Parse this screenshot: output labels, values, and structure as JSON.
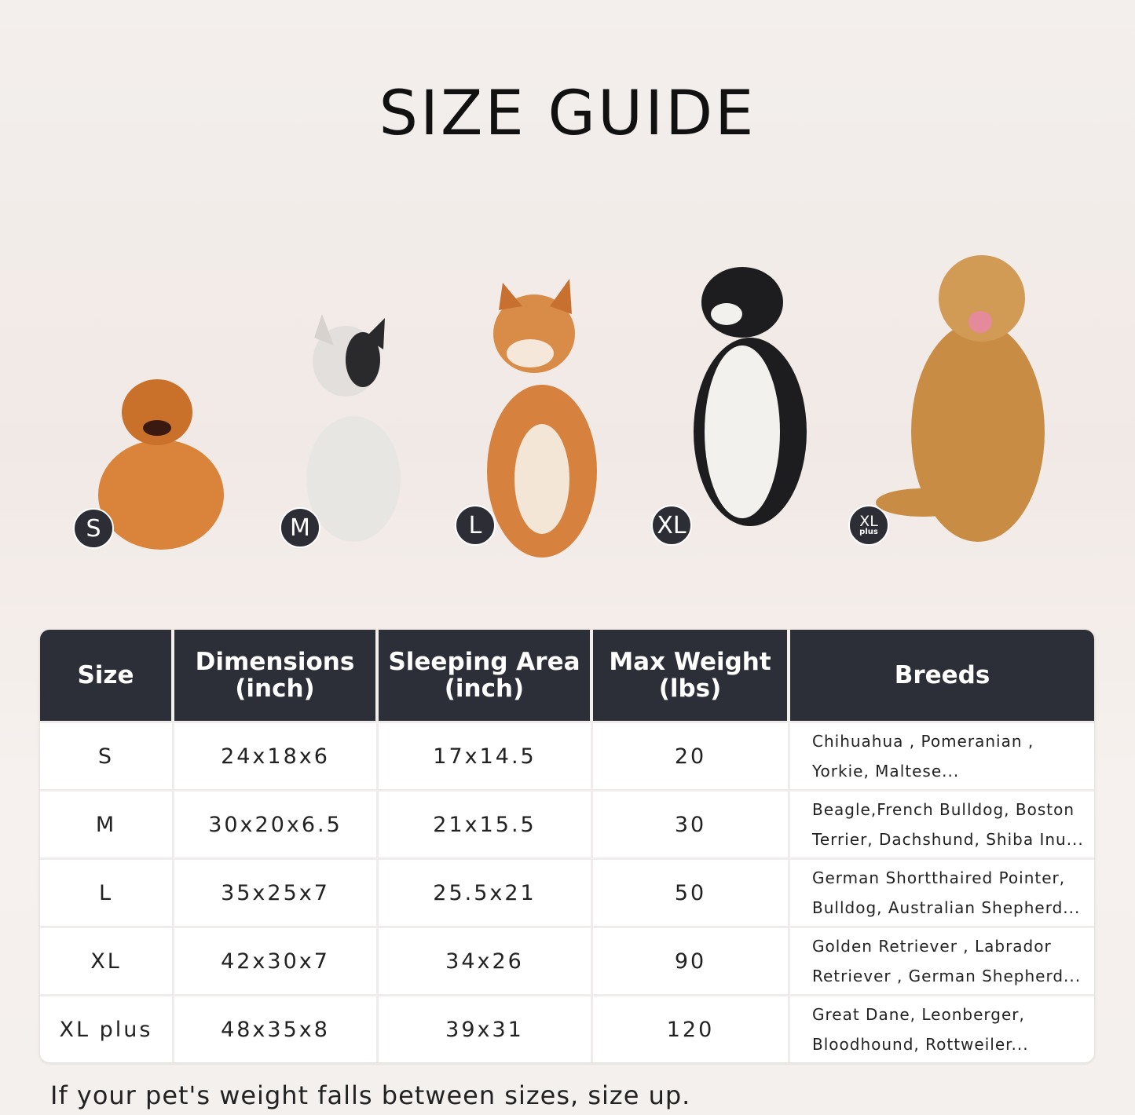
{
  "title": "SIZE GUIDE",
  "dogs": [
    {
      "badge": "S",
      "color": "#d9843a"
    },
    {
      "badge": "M",
      "color": "#e8e6e3"
    },
    {
      "badge": "L",
      "color": "#d6823e"
    },
    {
      "badge": "XL",
      "color": "#1d1d1f"
    },
    {
      "badge": "XL",
      "badge_sub": "plus",
      "color": "#c98c45"
    }
  ],
  "table": {
    "headers": [
      "Size",
      "Dimensions\n(inch)",
      "Sleeping Area\n(inch)",
      "Max Weight\n(lbs)",
      "Breeds"
    ],
    "header_color": "#2d2f38",
    "rows": [
      {
        "size": "S",
        "dimensions": "24x18x6",
        "sleeping_area": "17x14.5",
        "max_weight": "20",
        "breeds_line1": "Chihuahua , Pomeranian ,",
        "breeds_line2": "Yorkie, Maltese..."
      },
      {
        "size": "M",
        "dimensions": "30x20x6.5",
        "sleeping_area": "21x15.5",
        "max_weight": "30",
        "breeds_line1": "Beagle,French Bulldog, Boston",
        "breeds_line2": "Terrier, Dachshund, Shiba Inu..."
      },
      {
        "size": "L",
        "dimensions": "35x25x7",
        "sleeping_area": "25.5x21",
        "max_weight": "50",
        "breeds_line1": "German Shortthaired Pointer,",
        "breeds_line2": "Bulldog, Australian Shepherd..."
      },
      {
        "size": "XL",
        "dimensions": "42x30x7",
        "sleeping_area": "34x26",
        "max_weight": "90",
        "breeds_line1": "Golden Retriever , Labrador",
        "breeds_line2": "Retriever , German Shepherd..."
      },
      {
        "size": "XL plus",
        "dimensions": "48x35x8",
        "sleeping_area": "39x31",
        "max_weight": "120",
        "breeds_line1": "Great Dane, Leonberger,",
        "breeds_line2": "Bloodhound, Rottweiler..."
      }
    ]
  },
  "note": "If your pet's weight falls between sizes, size up."
}
